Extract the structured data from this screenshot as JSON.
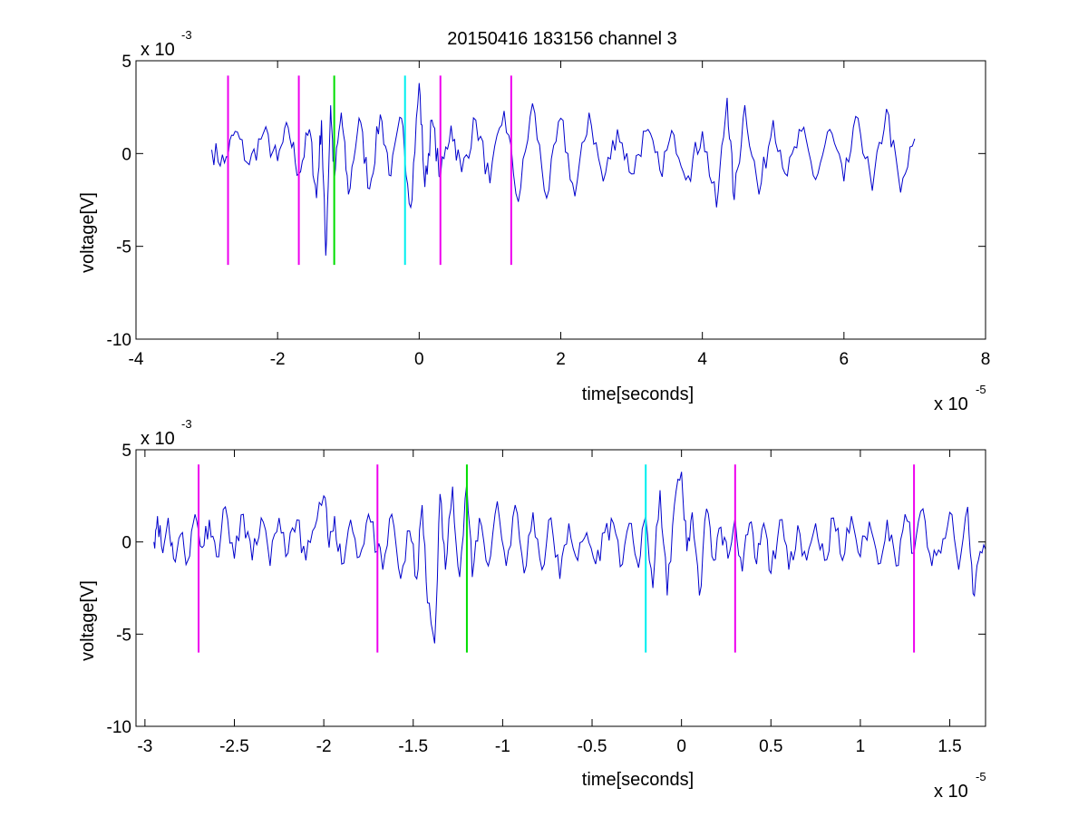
{
  "figure": {
    "title": "20150416 183156 channel 3"
  },
  "colors": {
    "signal": "#0000cc",
    "magenta": "#ee00ee",
    "green": "#00dd00",
    "cyan": "#00eeee",
    "axes": "#000000"
  },
  "chart_data": [
    {
      "type": "line",
      "title": "20150416 183156 channel 3",
      "xlabel": "time[seconds]",
      "ylabel": "voltage[V]",
      "x_multiplier": "x 10",
      "x_exponent": "-5",
      "y_multiplier": "x 10",
      "y_exponent": "-3",
      "xlim": [
        -4,
        8
      ],
      "ylim": [
        -10,
        5
      ],
      "x_ticks": [
        -4,
        -2,
        0,
        2,
        4,
        6,
        8
      ],
      "x_tick_labels": [
        "-4",
        "-2",
        "0",
        "2",
        "4",
        "6",
        "8"
      ],
      "y_ticks": [
        -10,
        -5,
        0,
        5
      ],
      "y_tick_labels": [
        "-10",
        "-5",
        "0",
        "5"
      ],
      "grid": false,
      "series": [
        {
          "color": "#0000cc",
          "x_range": [
            -2.93,
            7.0
          ],
          "x": [
            -2.93,
            -2.75,
            -2.6,
            -2.4,
            -2.2,
            -2.0,
            -1.85,
            -1.7,
            -1.55,
            -1.45,
            -1.38,
            -1.32,
            -1.25,
            -1.2,
            -1.1,
            -1.0,
            -0.85,
            -0.7,
            -0.55,
            -0.4,
            -0.25,
            -0.12,
            0.0,
            0.08,
            0.18,
            0.3,
            0.45,
            0.6,
            0.8,
            1.0,
            1.2,
            1.4,
            1.6,
            1.8,
            2.0,
            2.2,
            2.4,
            2.6,
            2.8,
            3.0,
            3.2,
            3.4,
            3.6,
            3.8,
            4.0,
            4.2,
            4.35,
            4.45,
            4.6,
            4.8,
            5.0,
            5.2,
            5.4,
            5.6,
            5.8,
            6.0,
            6.2,
            6.4,
            6.6,
            6.8,
            7.0
          ],
          "y": [
            0.2,
            -0.5,
            1.2,
            -0.6,
            1.1,
            -0.4,
            1.4,
            -1.1,
            1.3,
            -2.4,
            1.8,
            -5.5,
            2.6,
            -1.4,
            2.2,
            -2.2,
            1.9,
            -1.9,
            2.1,
            -1.2,
            1.9,
            -2.9,
            3.8,
            -1.8,
            1.8,
            -1.3,
            1.5,
            -1.0,
            1.8,
            -1.6,
            2.3,
            -2.6,
            2.7,
            -2.4,
            1.9,
            -2.3,
            2.2,
            -1.5,
            1.3,
            -1.1,
            1.2,
            -0.9,
            1.0,
            -1.2,
            1.2,
            -2.9,
            3.0,
            -2.5,
            2.6,
            -2.2,
            1.8,
            -1.2,
            1.2,
            -1.4,
            1.3,
            -1.5,
            1.9,
            -2.0,
            2.4,
            -2.1,
            0.8
          ]
        }
      ],
      "markers": [
        {
          "x": -2.7,
          "color": "#ee00ee"
        },
        {
          "x": -1.7,
          "color": "#ee00ee"
        },
        {
          "x": -1.2,
          "color": "#00dd00"
        },
        {
          "x": -0.2,
          "color": "#00eeee"
        },
        {
          "x": 0.3,
          "color": "#ee00ee"
        },
        {
          "x": 1.3,
          "color": "#ee00ee"
        }
      ],
      "marker_yrange": [
        -6,
        4.2
      ]
    },
    {
      "type": "line",
      "xlabel": "time[seconds]",
      "ylabel": "voltage[V]",
      "x_multiplier": "x 10",
      "x_exponent": "-5",
      "y_multiplier": "x 10",
      "y_exponent": "-3",
      "xlim": [
        -3.05,
        1.7
      ],
      "ylim": [
        -10,
        5
      ],
      "x_ticks": [
        -3,
        -2.5,
        -2,
        -1.5,
        -1,
        -0.5,
        0,
        0.5,
        1,
        1.5
      ],
      "x_tick_labels": [
        "-3",
        "-2.5",
        "-2",
        "-1.5",
        "-1",
        "-0.5",
        "0",
        "0.5",
        "1",
        "1.5"
      ],
      "y_ticks": [
        -10,
        -5,
        0,
        5
      ],
      "y_tick_labels": [
        "-10",
        "-5",
        "0",
        "5"
      ],
      "grid": false,
      "series": [
        {
          "color": "#0000cc",
          "x": [
            -2.95,
            -2.93,
            -2.9,
            -2.87,
            -2.84,
            -2.8,
            -2.76,
            -2.72,
            -2.68,
            -2.64,
            -2.6,
            -2.55,
            -2.5,
            -2.45,
            -2.4,
            -2.35,
            -2.3,
            -2.25,
            -2.2,
            -2.15,
            -2.1,
            -2.05,
            -2.0,
            -1.97,
            -1.94,
            -1.9,
            -1.85,
            -1.8,
            -1.75,
            -1.7,
            -1.67,
            -1.62,
            -1.57,
            -1.52,
            -1.48,
            -1.45,
            -1.42,
            -1.38,
            -1.35,
            -1.32,
            -1.28,
            -1.24,
            -1.2,
            -1.17,
            -1.13,
            -1.08,
            -1.03,
            -0.98,
            -0.93,
            -0.88,
            -0.83,
            -0.78,
            -0.73,
            -0.68,
            -0.63,
            -0.58,
            -0.53,
            -0.48,
            -0.43,
            -0.38,
            -0.33,
            -0.28,
            -0.24,
            -0.2,
            -0.16,
            -0.12,
            -0.08,
            -0.04,
            0.0,
            0.03,
            0.06,
            0.1,
            0.14,
            0.18,
            0.22,
            0.26,
            0.3,
            0.34,
            0.38,
            0.42,
            0.46,
            0.5,
            0.55,
            0.6,
            0.65,
            0.7,
            0.75,
            0.8,
            0.85,
            0.9,
            0.95,
            1.0,
            1.05,
            1.1,
            1.15,
            1.2,
            1.25,
            1.3,
            1.35,
            1.4,
            1.45,
            1.5,
            1.55,
            1.6,
            1.63,
            1.66,
            1.7
          ],
          "y": [
            0.0,
            1.4,
            -0.6,
            1.3,
            -0.9,
            0.4,
            -1.0,
            1.5,
            -0.3,
            1.2,
            -0.8,
            1.9,
            -0.9,
            1.5,
            -1.0,
            1.3,
            -1.3,
            1.3,
            -0.6,
            1.2,
            -1.0,
            0.8,
            2.5,
            -0.3,
            1.4,
            -1.2,
            1.2,
            -0.8,
            1.5,
            -0.5,
            -1.5,
            1.5,
            -2.0,
            0.6,
            -2.0,
            2.0,
            -3.3,
            -5.5,
            2.6,
            -1.5,
            3.0,
            -1.9,
            3.2,
            -1.9,
            1.3,
            -1.3,
            2.2,
            -1.3,
            2.0,
            -1.7,
            1.6,
            -1.5,
            1.3,
            -2.0,
            1.0,
            -1.0,
            0.5,
            -1.2,
            0.5,
            1.0,
            -1.2,
            1.0,
            -1.4,
            1.4,
            -2.5,
            2.8,
            -2.9,
            2.0,
            3.8,
            -0.5,
            1.6,
            -2.9,
            1.8,
            -1.0,
            0.8,
            -0.9,
            1.3,
            -1.6,
            1.0,
            -1.2,
            1.0,
            -1.7,
            1.2,
            -1.5,
            0.9,
            -1.0,
            1.0,
            -1.0,
            1.3,
            -1.0,
            1.4,
            -0.8,
            1.1,
            -1.2,
            1.2,
            -1.3,
            1.5,
            -0.6,
            1.8,
            -1.3,
            -0.6,
            1.6,
            -1.5,
            1.9,
            -2.8,
            -1.0,
            -0.4
          ]
        }
      ],
      "markers": [
        {
          "x": -2.7,
          "color": "#ee00ee"
        },
        {
          "x": -1.7,
          "color": "#ee00ee"
        },
        {
          "x": -1.2,
          "color": "#00dd00"
        },
        {
          "x": -0.2,
          "color": "#00eeee"
        },
        {
          "x": 0.3,
          "color": "#ee00ee"
        },
        {
          "x": 1.3,
          "color": "#ee00ee"
        }
      ],
      "marker_yrange": [
        -6,
        4.2
      ]
    }
  ]
}
